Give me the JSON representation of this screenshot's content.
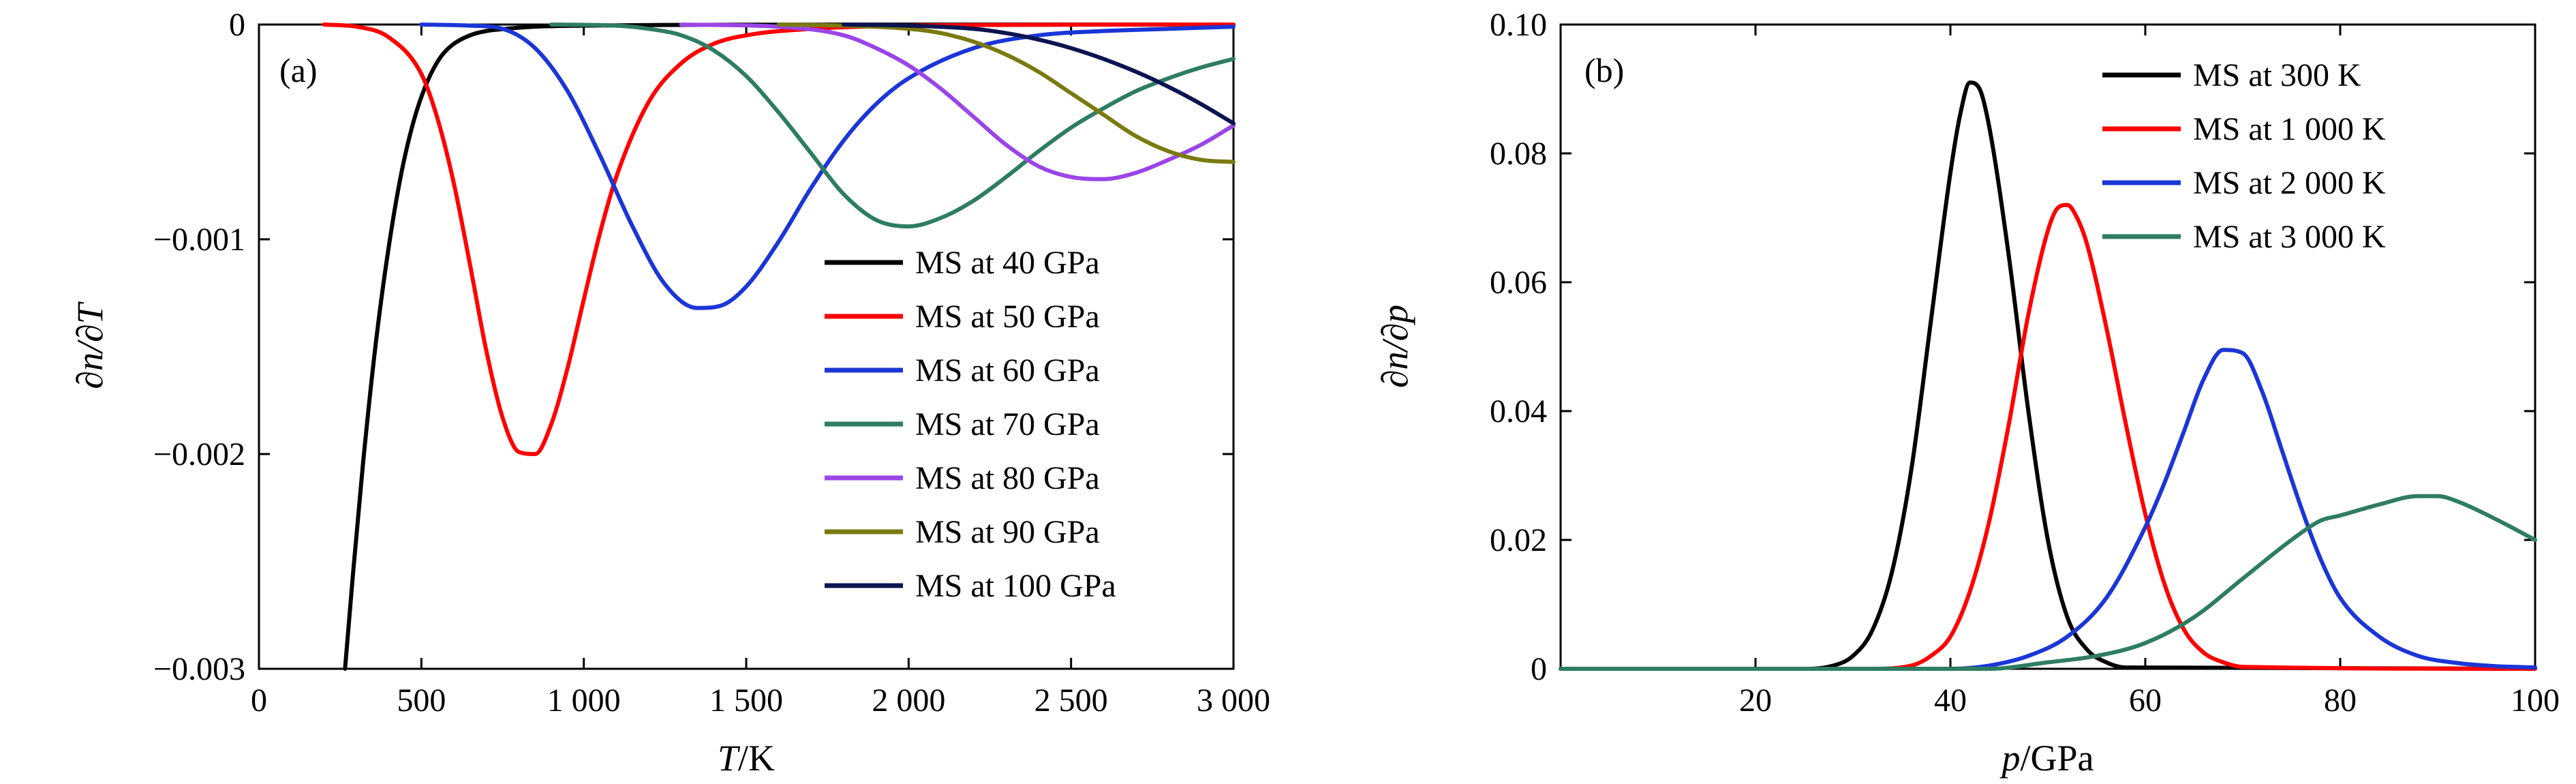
{
  "chart_data": [
    {
      "id": "a",
      "type": "line",
      "panel_label": "(a)",
      "xlabel_var": "T",
      "xlabel_unit": "/K",
      "ylabel": "∂n/∂T",
      "xlim": [
        0,
        3000
      ],
      "ylim": [
        -0.003,
        0
      ],
      "xticks": [
        0,
        500,
        1000,
        1500,
        2000,
        2500,
        3000
      ],
      "xtick_labels": [
        "0",
        "500",
        "1 000",
        "1 500",
        "2 000",
        "2 500",
        "3 000"
      ],
      "yticks": [
        0,
        -0.001,
        -0.002,
        -0.003
      ],
      "ytick_labels": [
        "0",
        "−0.001",
        "−0.002",
        "−0.003"
      ],
      "legend_position": "right-middle",
      "series": [
        {
          "name": "MS at 40 GPa",
          "color": "#000000",
          "x": [
            265,
            290,
            320,
            360,
            400,
            440,
            480,
            520,
            560,
            600,
            650,
            700,
            760,
            850,
            1000,
            1500,
            3000
          ],
          "y": [
            -0.003,
            -0.00255,
            -0.00205,
            -0.00148,
            -0.00103,
            -0.00068,
            -0.00043,
            -0.00026,
            -0.00015,
            -9e-05,
            -5e-05,
            -3e-05,
            -2e-05,
            -1e-05,
            -5e-06,
            -1e-06,
            0
          ]
        },
        {
          "name": "MS at 50 GPa",
          "color": "#ff0000",
          "x": [
            200,
            300,
            400,
            500,
            550,
            600,
            650,
            700,
            750,
            800,
            850,
            900,
            950,
            1000,
            1050,
            1100,
            1200,
            1300,
            1400,
            1500,
            1700,
            2000,
            2500,
            3000
          ],
          "y": [
            0,
            -1e-05,
            -6e-05,
            -0.00023,
            -0.00044,
            -0.00074,
            -0.00112,
            -0.00152,
            -0.00183,
            -0.00199,
            -0.002,
            -0.00186,
            -0.0016,
            -0.00128,
            -0.00097,
            -0.00071,
            -0.00036,
            -0.00018,
            -9e-05,
            -5e-05,
            -2e-05,
            -5e-06,
            -1e-06,
            0
          ]
        },
        {
          "name": "MS at 60 GPa",
          "color": "#1b36d6",
          "x": [
            500,
            650,
            750,
            850,
            950,
            1050,
            1150,
            1250,
            1350,
            1420,
            1500,
            1600,
            1700,
            1800,
            1900,
            2000,
            2200,
            2400,
            2600,
            2800,
            3000
          ],
          "y": [
            0,
            -5e-06,
            -2e-05,
            -0.00011,
            -0.00031,
            -0.00061,
            -0.00094,
            -0.00121,
            -0.00132,
            -0.00131,
            -0.00122,
            -0.00101,
            -0.00076,
            -0.00054,
            -0.00037,
            -0.00025,
            -0.00011,
            -5e-05,
            -3e-05,
            -2e-05,
            -1e-05
          ]
        },
        {
          "name": "MS at 70 GPa",
          "color": "#2e7d62",
          "x": [
            900,
            1100,
            1200,
            1300,
            1400,
            1500,
            1600,
            1700,
            1800,
            1900,
            2000,
            2100,
            2200,
            2300,
            2400,
            2500,
            2600,
            2700,
            2800,
            2900,
            3000
          ],
          "y": [
            0,
            -5e-06,
            -2e-05,
            -5e-05,
            -0.00012,
            -0.00024,
            -0.00041,
            -0.0006,
            -0.00079,
            -0.00091,
            -0.00094,
            -0.0009,
            -0.00082,
            -0.00071,
            -0.00059,
            -0.00048,
            -0.00039,
            -0.00031,
            -0.00025,
            -0.0002,
            -0.00016
          ]
        },
        {
          "name": "MS at 80 GPa",
          "color": "#9a45e8",
          "x": [
            1300,
            1600,
            1800,
            1900,
            2000,
            2100,
            2200,
            2300,
            2400,
            2500,
            2600,
            2700,
            2800,
            2900,
            3000
          ],
          "y": [
            0,
            -1e-05,
            -5e-05,
            -0.00011,
            -0.00019,
            -0.0003,
            -0.00043,
            -0.00056,
            -0.00066,
            -0.00071,
            -0.00072,
            -0.00069,
            -0.00063,
            -0.00056,
            -0.00047
          ]
        },
        {
          "name": "MS at 90 GPa",
          "color": "#7a7a10",
          "x": [
            1600,
            1800,
            2000,
            2100,
            2200,
            2300,
            2400,
            2500,
            2600,
            2700,
            2800,
            2900,
            3000
          ],
          "y": [
            0,
            -5e-06,
            -2e-05,
            -4e-05,
            -8e-05,
            -0.00014,
            -0.00022,
            -0.00032,
            -0.00042,
            -0.00052,
            -0.00059,
            -0.00063,
            -0.00064
          ]
        },
        {
          "name": "MS at 100 GPa",
          "color": "#0b1450",
          "x": [
            1800,
            2000,
            2200,
            2300,
            2400,
            2500,
            2600,
            2700,
            2800,
            2900,
            3000
          ],
          "y": [
            0,
            -5e-06,
            -2e-05,
            -4e-05,
            -7e-05,
            -0.00011,
            -0.00016,
            -0.00022,
            -0.00029,
            -0.00037,
            -0.00046
          ]
        }
      ]
    },
    {
      "id": "b",
      "type": "line",
      "panel_label": "(b)",
      "xlabel_var": "p",
      "xlabel_unit": "/GPa",
      "ylabel": "∂n/∂p",
      "xlim": [
        0,
        100
      ],
      "ylim": [
        0,
        0.1
      ],
      "xticks": [
        20,
        40,
        60,
        80,
        100
      ],
      "xtick_labels": [
        "20",
        "40",
        "60",
        "80",
        "100"
      ],
      "yticks": [
        0,
        0.02,
        0.04,
        0.06,
        0.08,
        0.1
      ],
      "ytick_labels": [
        "0",
        "0.02",
        "0.04",
        "0.06",
        "0.08",
        "0.10"
      ],
      "legend_position": "top-right",
      "series": [
        {
          "name": "MS at 300 K",
          "color": "#000000",
          "x": [
            0,
            25,
            28,
            30,
            32,
            34,
            36,
            38,
            40,
            41,
            42,
            43,
            44,
            46,
            48,
            50,
            52,
            54,
            56,
            58,
            100
          ],
          "y": [
            0,
            0,
            0.0005,
            0.002,
            0.006,
            0.015,
            0.031,
            0.054,
            0.077,
            0.086,
            0.091,
            0.09,
            0.084,
            0.064,
            0.04,
            0.02,
            0.008,
            0.003,
            0.001,
            0.0002,
            0
          ]
        },
        {
          "name": "MS at 1 000 K",
          "color": "#ff0000",
          "x": [
            0,
            32,
            36,
            38,
            40,
            42,
            44,
            46,
            48,
            50,
            51,
            52,
            53,
            54,
            56,
            58,
            60,
            62,
            64,
            66,
            68,
            70,
            100
          ],
          "y": [
            0,
            0,
            0.0005,
            0.002,
            0.005,
            0.012,
            0.023,
            0.038,
            0.055,
            0.068,
            0.0715,
            0.072,
            0.07,
            0.066,
            0.053,
            0.038,
            0.024,
            0.013,
            0.006,
            0.0025,
            0.001,
            0.0003,
            0
          ]
        },
        {
          "name": "MS at 2 000 K",
          "color": "#1b36d6",
          "x": [
            0,
            40,
            44,
            48,
            52,
            56,
            60,
            62,
            64,
            66,
            68,
            70,
            72,
            74,
            76,
            78,
            80,
            84,
            88,
            92,
            96,
            100
          ],
          "y": [
            0,
            0,
            0.0005,
            0.002,
            0.005,
            0.011,
            0.022,
            0.029,
            0.037,
            0.045,
            0.0495,
            0.049,
            0.043,
            0.034,
            0.025,
            0.017,
            0.011,
            0.005,
            0.002,
            0.0009,
            0.0004,
            0.0002
          ]
        },
        {
          "name": "MS at 3 000 K",
          "color": "#2e7d62",
          "x": [
            0,
            44,
            50,
            55,
            60,
            65,
            70,
            75,
            78,
            80,
            84,
            88,
            90,
            92,
            96,
            100
          ],
          "y": [
            0,
            0,
            0.001,
            0.002,
            0.004,
            0.008,
            0.014,
            0.02,
            0.023,
            0.0238,
            0.0255,
            0.0268,
            0.0268,
            0.026,
            0.0232,
            0.02
          ]
        }
      ]
    }
  ]
}
